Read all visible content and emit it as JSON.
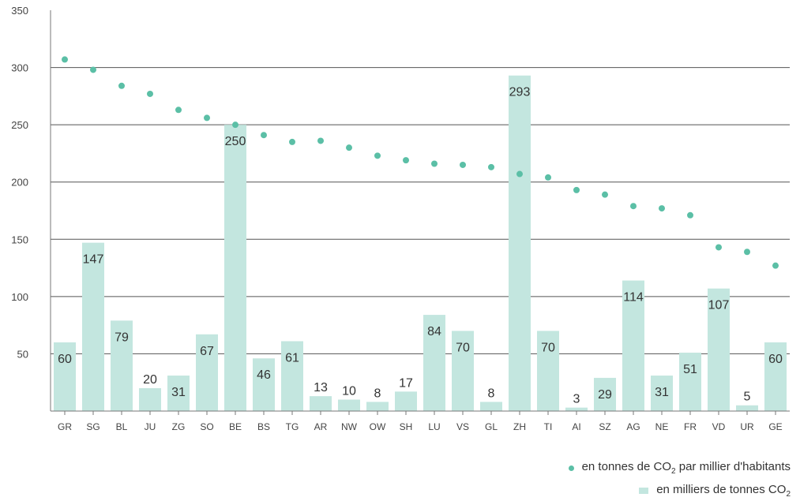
{
  "chart_data": {
    "type": "bar",
    "categories": [
      "GR",
      "SG",
      "BL",
      "JU",
      "ZG",
      "SO",
      "BE",
      "BS",
      "TG",
      "AR",
      "NW",
      "OW",
      "SH",
      "LU",
      "VS",
      "GL",
      "ZH",
      "TI",
      "AI",
      "SZ",
      "AG",
      "NE",
      "FR",
      "VD",
      "UR",
      "GE"
    ],
    "series": [
      {
        "name": "en milliers de tonnes CO₂",
        "kind": "bar",
        "values": [
          60,
          147,
          79,
          20,
          31,
          67,
          250,
          46,
          61,
          13,
          10,
          8,
          17,
          84,
          70,
          8,
          293,
          70,
          3,
          29,
          114,
          31,
          51,
          107,
          5,
          60
        ]
      },
      {
        "name": "en tonnes de CO₂ par millier d'habitants",
        "kind": "dot",
        "values": [
          307,
          298,
          284,
          277,
          263,
          256,
          250,
          241,
          235,
          236,
          230,
          223,
          219,
          216,
          215,
          213,
          207,
          204,
          193,
          189,
          179,
          177,
          171,
          143,
          139,
          127
        ]
      }
    ],
    "yticks": [
      0,
      50,
      100,
      150,
      200,
      250,
      300,
      350
    ],
    "ylim": [
      0,
      350
    ],
    "grid": true,
    "legend_position": "bottom-right",
    "colors": {
      "bar": "#c3e6df",
      "dot": "#5bbfa6",
      "grid": "#555555",
      "axis": "#777777"
    }
  },
  "legend": {
    "dots_prefix": "en tonnes de CO",
    "dots_sub": "2",
    "dots_suffix": " par millier d'habitants",
    "bars_prefix": "en milliers de tonnes CO",
    "bars_sub": "2"
  }
}
